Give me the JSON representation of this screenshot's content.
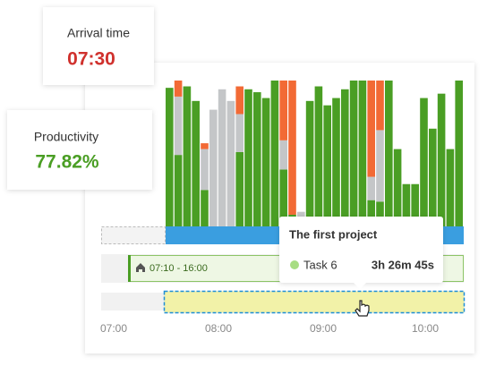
{
  "arrival": {
    "label": "Arrival time",
    "value": "07:30"
  },
  "productivity": {
    "label": "Productivity",
    "value": "77.82%"
  },
  "activity": {
    "colors": {
      "productive": "#4a9e24",
      "neutral": "#c4c6c8",
      "unproductive": "#f26a35"
    },
    "bars": [
      {
        "productive": 95
      },
      {
        "productive": 49,
        "neutral": 40,
        "unproductive": 11
      },
      {
        "productive": 96
      },
      {
        "productive": 86
      },
      {
        "productive": 25,
        "neutral": 28,
        "unproductive": 4
      },
      {
        "neutral": 80
      },
      {
        "neutral": 94
      },
      {
        "neutral": 86
      },
      {
        "productive": 51,
        "neutral": 26,
        "unproductive": 19
      },
      {
        "productive": 94
      },
      {
        "productive": 92
      },
      {
        "productive": 88
      },
      {
        "productive": 100
      },
      {
        "productive": 39,
        "neutral": 20,
        "unproductive": 41
      },
      {
        "productive": 8,
        "unproductive": 92
      },
      {
        "neutral": 10
      },
      {
        "productive": 86
      },
      {
        "productive": 96
      },
      {
        "productive": 83
      },
      {
        "productive": 88
      },
      {
        "productive": 94
      },
      {
        "productive": 100
      },
      {
        "productive": 100
      },
      {
        "productive": 18,
        "neutral": 16,
        "unproductive": 66
      },
      {
        "productive": 17,
        "neutral": 49,
        "unproductive": 34
      },
      {
        "productive": 100
      },
      {
        "productive": 53
      },
      {
        "productive": 29
      },
      {
        "productive": 29
      },
      {
        "productive": 88
      },
      {
        "productive": 67
      },
      {
        "productive": 91
      },
      {
        "productive": 53
      },
      {
        "productive": 100
      }
    ]
  },
  "shift": {
    "label": "07:10 - 16:00"
  },
  "tooltip": {
    "title": "The first project",
    "task": "Task 6",
    "duration": "3h 26m 45s"
  },
  "timeline": {
    "labels": [
      "07:00",
      "08:00",
      "09:00",
      "10:00"
    ]
  }
}
